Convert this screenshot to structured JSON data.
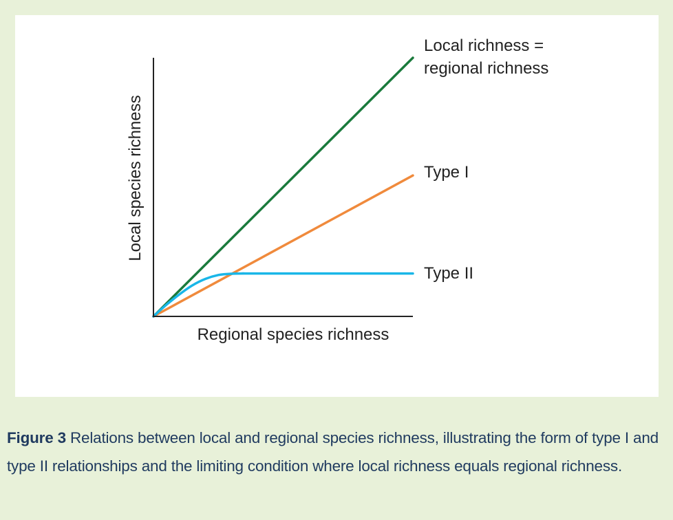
{
  "chart_data": {
    "type": "line",
    "title": "",
    "xlabel": "Regional species richness",
    "ylabel": "Local species richness",
    "xlim": [
      0,
      1
    ],
    "ylim": [
      0,
      1
    ],
    "ticks": "none",
    "series": [
      {
        "name": "Local richness = regional richness",
        "label_lines": [
          "Local richness =",
          "regional richness"
        ],
        "color": "#1a7a3c",
        "x": [
          0,
          1
        ],
        "y": [
          0,
          1
        ]
      },
      {
        "name": "Type I",
        "label_lines": [
          "Type I"
        ],
        "color": "#f08a3c",
        "x": [
          0,
          1
        ],
        "y": [
          0,
          0.545
        ]
      },
      {
        "name": "Type II",
        "label_lines": [
          "Type II"
        ],
        "color": "#19b6e8",
        "x": [
          0,
          0.05,
          0.1,
          0.15,
          0.2,
          0.25,
          0.3,
          0.35,
          0.4,
          1.0
        ],
        "y": [
          0,
          0.045,
          0.085,
          0.12,
          0.145,
          0.16,
          0.165,
          0.166,
          0.166,
          0.166
        ]
      }
    ]
  },
  "caption": {
    "label": "Figure 3",
    "text": " Relations between local and regional species richness, illustrating the form of type I and type II relationships and the limiting condition where local richness equals regional richness."
  }
}
